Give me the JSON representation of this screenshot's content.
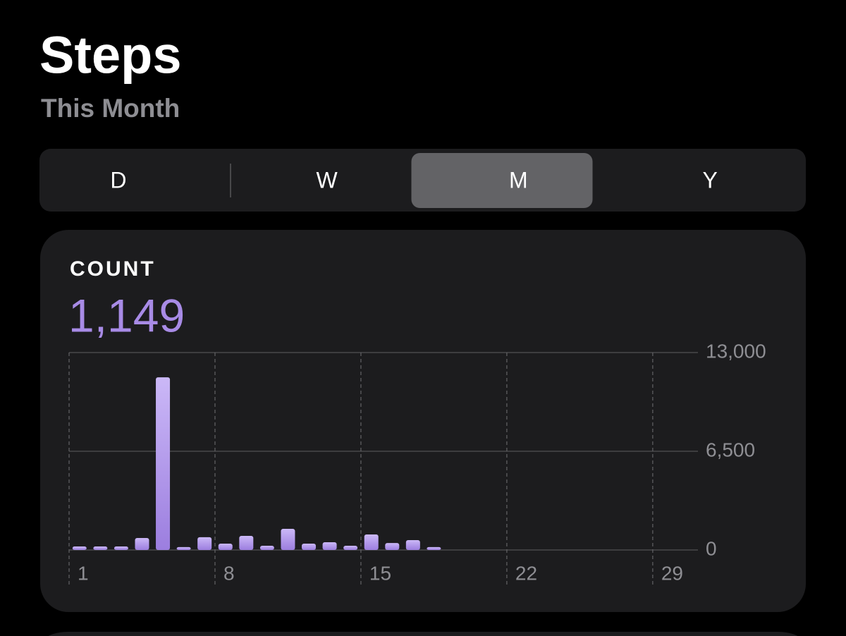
{
  "header": {
    "title": "Steps",
    "subtitle": "This Month"
  },
  "segments": {
    "items": [
      "D",
      "W",
      "M",
      "Y"
    ],
    "selected": 2
  },
  "summary": {
    "label": "COUNT",
    "value": "1,149"
  },
  "chart_data": {
    "type": "bar",
    "x": [
      1,
      2,
      3,
      4,
      5,
      6,
      7,
      8,
      9,
      10,
      11,
      12,
      13,
      14,
      15,
      16,
      17,
      18
    ],
    "values": [
      230,
      230,
      230,
      790,
      11370,
      190,
      840,
      420,
      930,
      280,
      1390,
      420,
      510,
      280,
      1020,
      460,
      650,
      190
    ],
    "color": "#a88be6",
    "xlim": [
      1,
      31
    ],
    "xticks": [
      1,
      8,
      15,
      22,
      29
    ],
    "ylim": [
      0,
      13000
    ],
    "yticks": [
      0,
      {
        "value": 6500,
        "label": "6,500"
      },
      {
        "value": 13000,
        "label": "13,000"
      }
    ],
    "grid": true
  }
}
